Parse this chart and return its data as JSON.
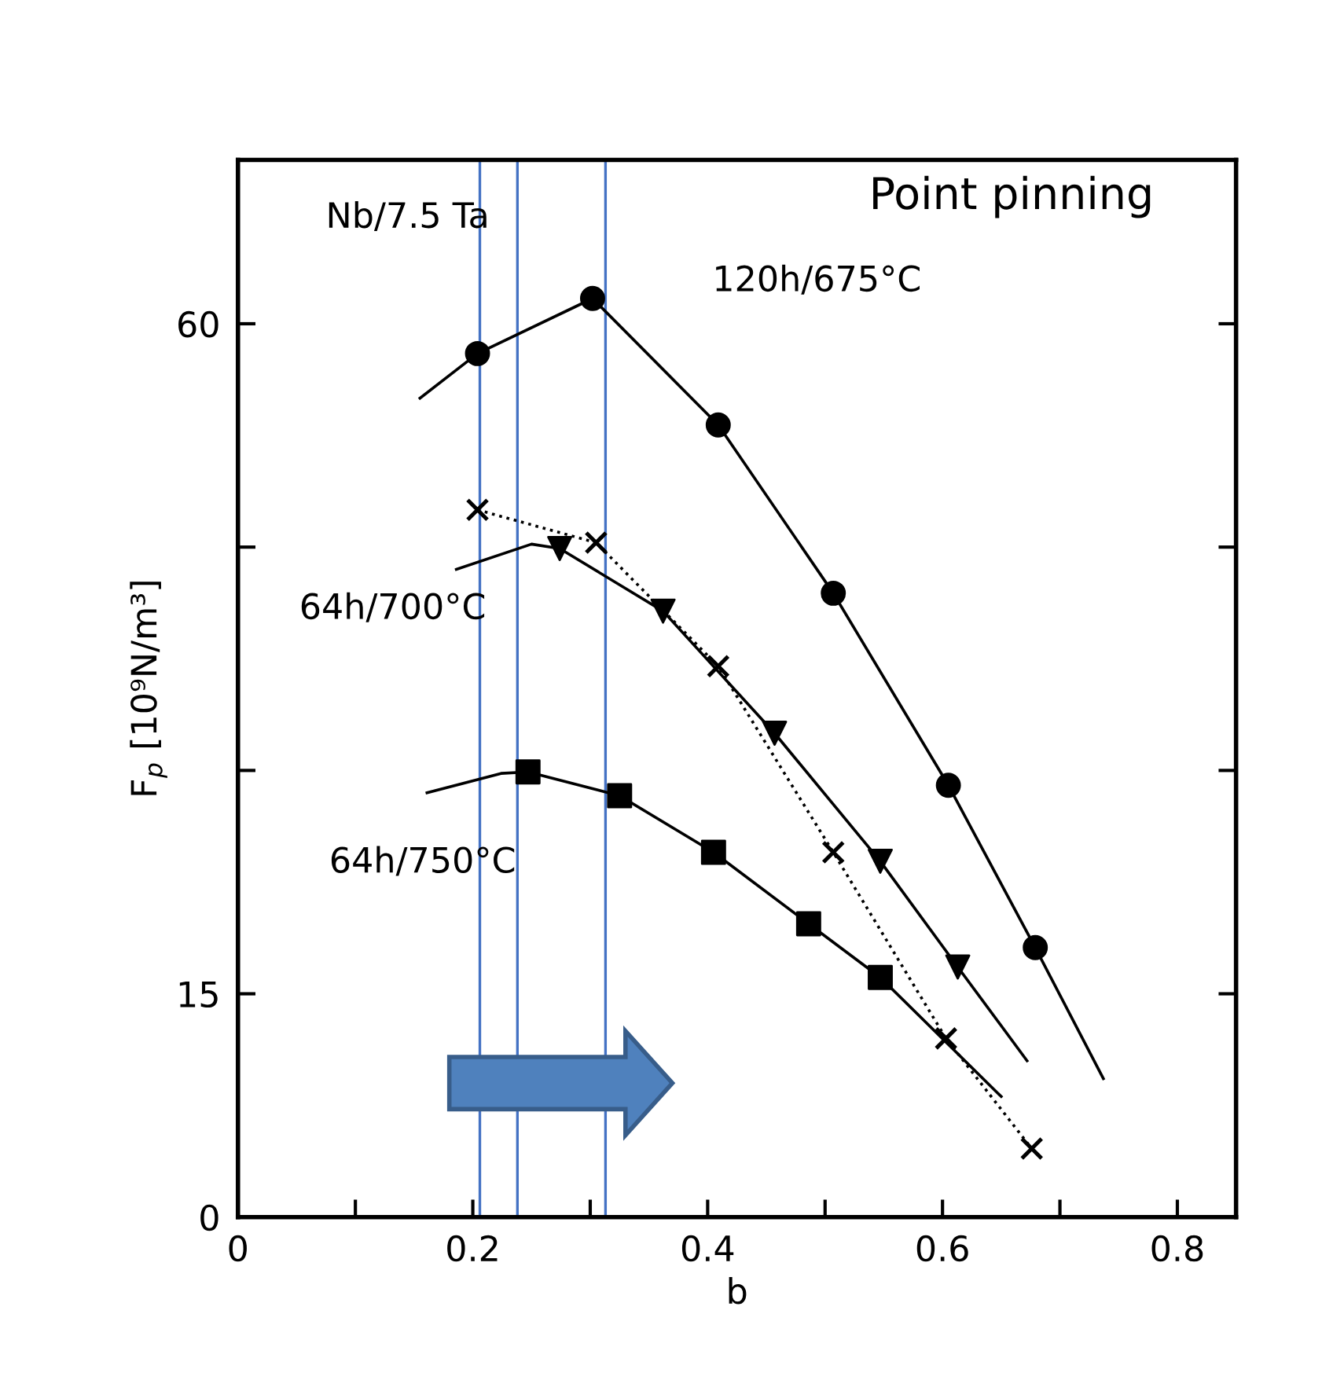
{
  "chart_data": {
    "type": "scatter",
    "xlabel": "b",
    "ylabel": "F$_{p}$ [10⁹N/m³]",
    "xlim": [
      0,
      0.85
    ],
    "ylim": [
      0,
      71
    ],
    "xticks": [
      0,
      {
        "value": 0.1,
        "label": null
      },
      0.2,
      {
        "value": 0.3,
        "label": null
      },
      0.4,
      {
        "value": 0.5,
        "label": null
      },
      0.6,
      {
        "value": 0.7,
        "label": null
      },
      0.8
    ],
    "yticks": [
      0,
      15,
      {
        "value": 30,
        "label": null
      },
      {
        "value": 45,
        "label": null
      },
      60
    ],
    "grid": false,
    "legend": false,
    "series": [
      {
        "type": "line",
        "name": "120h/675°C",
        "color": "#000000",
        "marker": "none",
        "line_style": "solid",
        "x": [
          0.155,
          0.204,
          0.302,
          0.409,
          0.507,
          0.605,
          0.679,
          0.737
        ],
        "values": [
          55.0,
          58.0,
          61.7,
          53.2,
          41.9,
          29.0,
          18.1,
          9.3
        ]
      },
      {
        "color": "#000000",
        "marker": "circle",
        "x": [
          0.204,
          0.302,
          0.409,
          0.507,
          0.605,
          0.679
        ],
        "values": [
          58.0,
          61.7,
          53.2,
          41.9,
          29.0,
          18.1
        ]
      },
      {
        "type": "line",
        "name": "64h/700°C",
        "color": "#000000",
        "marker": "none",
        "line_style": "solid",
        "x": [
          0.186,
          0.25,
          0.274,
          0.362,
          0.457,
          0.547,
          0.613,
          0.672
        ],
        "values": [
          43.5,
          45.2,
          44.9,
          40.7,
          32.5,
          23.9,
          16.8,
          10.5
        ]
      },
      {
        "color": "#000000",
        "marker": "triangle",
        "x": [
          0.274,
          0.362,
          0.457,
          0.547,
          0.613
        ],
        "values": [
          44.9,
          40.7,
          32.5,
          23.9,
          16.8
        ]
      },
      {
        "type": "line",
        "name": "64h/750°C",
        "color": "#000000",
        "marker": "none",
        "line_style": "solid",
        "x": [
          0.161,
          0.224,
          0.247,
          0.325,
          0.405,
          0.486,
          0.547,
          0.65
        ],
        "values": [
          28.5,
          29.8,
          29.9,
          28.3,
          24.5,
          19.7,
          16.1,
          8.1
        ]
      },
      {
        "color": "#000000",
        "marker": "square",
        "x": [
          0.247,
          0.325,
          0.405,
          0.486,
          0.547
        ],
        "values": [
          29.9,
          28.3,
          24.5,
          19.7,
          16.1
        ]
      },
      {
        "type": "line",
        "color": "#000000",
        "marker": "cross",
        "line_style": "dotted",
        "x": [
          0.204,
          0.305,
          0.409,
          0.507,
          0.603,
          0.676
        ],
        "values": [
          47.5,
          45.3,
          37.0,
          24.5,
          12.0,
          4.6
        ]
      }
    ],
    "ref_lines": [
      {
        "axis": "x",
        "value": 0.206,
        "color": "#4472c4"
      },
      {
        "axis": "x",
        "value": 0.238,
        "color": "#4472c4"
      },
      {
        "axis": "x",
        "value": 0.313,
        "color": "#4472c4"
      }
    ],
    "annotations": [
      "Nb/7.5 Ta",
      "Point pinning"
    ]
  }
}
